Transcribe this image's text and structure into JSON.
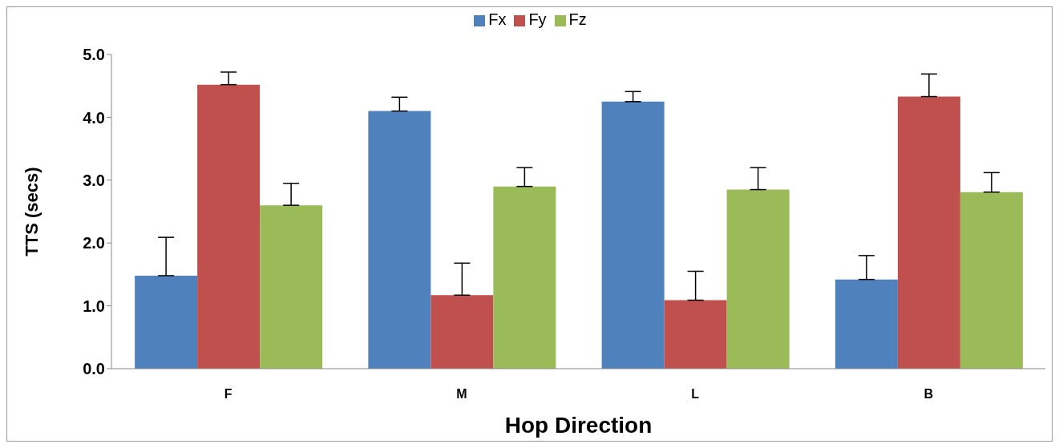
{
  "chart_data": {
    "type": "bar",
    "xlabel": "Hop Direction",
    "ylabel": "TTS (secs)",
    "categories": [
      "F",
      "M",
      "L",
      "B"
    ],
    "series": [
      {
        "name": "Fx",
        "color": "#4f81bd",
        "values": [
          1.48,
          4.1,
          4.25,
          1.42
        ],
        "errors": [
          [
            1.48,
            2.09
          ],
          [
            4.1,
            4.32
          ],
          [
            4.25,
            4.41
          ],
          [
            1.42,
            1.8
          ]
        ]
      },
      {
        "name": "Fy",
        "color": "#c0504d",
        "values": [
          4.52,
          1.17,
          1.09,
          4.33
        ],
        "errors": [
          [
            4.52,
            4.72
          ],
          [
            1.17,
            1.68
          ],
          [
            1.09,
            1.55
          ],
          [
            4.33,
            4.69
          ]
        ]
      },
      {
        "name": "Fz",
        "color": "#9bbb59",
        "values": [
          2.6,
          2.9,
          2.85,
          2.81
        ],
        "errors": [
          [
            2.6,
            2.95
          ],
          [
            2.9,
            3.2
          ],
          [
            2.85,
            3.2
          ],
          [
            2.81,
            3.12
          ]
        ]
      }
    ],
    "ylim": [
      0,
      5
    ],
    "yticks": [
      {
        "value": 0,
        "label": "0.0"
      },
      {
        "value": 1,
        "label": "1.0"
      },
      {
        "value": 2,
        "label": "2.0"
      },
      {
        "value": 3,
        "label": "3.0"
      },
      {
        "value": 4,
        "label": "4.0"
      },
      {
        "value": 5,
        "label": "5.0"
      }
    ],
    "grid": false,
    "legend": "top"
  }
}
